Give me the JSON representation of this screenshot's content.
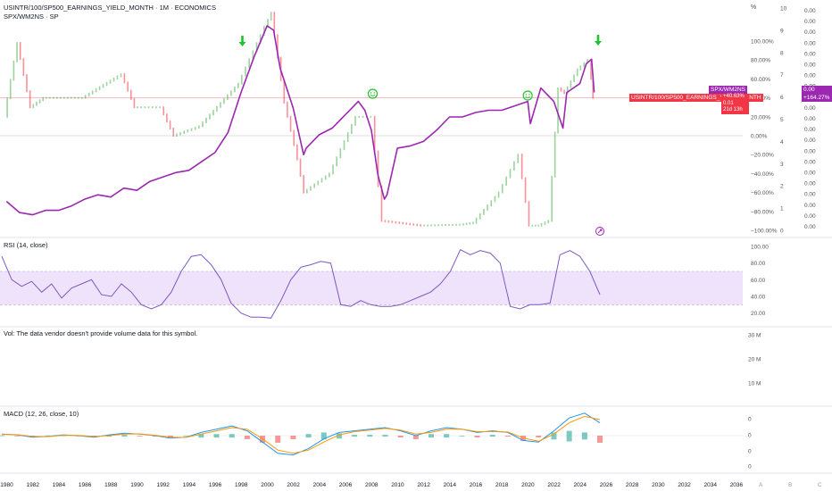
{
  "header": {
    "title": "USINTR/100/SP500_EARNINGS_YIELD_MONTH · 1M · ECONOMICS",
    "subtitle": "SPX/WM2NS · SP"
  },
  "panes": {
    "rsi": "RSI (14, close)",
    "vol": "Vol: The data vendor doesn't provide volume data for this symbol.",
    "macd": "MACD (12, 26, close, 10)"
  },
  "price_tags": {
    "spx_name": "SPX/WM2NS",
    "spx_value": "0.00",
    "spx_change": "+164.27%",
    "usintr_name": "USINTR/100/SP500_EARNINGS_YIELD_MONTH",
    "usintr_value": "0.01",
    "usintr_change": "+40.63%",
    "usintr_countdown": "21d 13h"
  },
  "axes": {
    "pct_label": "%",
    "pct_ticks": [
      "100.00%",
      "80.00%",
      "60.00%",
      "40.00%",
      "20.00%",
      "0.00%",
      "−20.00%",
      "−40.00%",
      "−60.00%",
      "−80.00%",
      "−100.00%"
    ],
    "mid_ticks": [
      "10",
      "9",
      "8",
      "7",
      "6",
      "5",
      "4",
      "3",
      "2",
      "1",
      "0"
    ],
    "right_ticks": [
      "0.00",
      "0.00",
      "0.00",
      "0.00",
      "0.00",
      "0.00",
      "0.00",
      "0.00",
      "0.00",
      "0.00",
      "0.00",
      "0.00",
      "0.00",
      "0.00",
      "0.00",
      "0.00",
      "0.00",
      "0.00",
      "0.00",
      "0.00",
      "0.00"
    ],
    "rsi_ticks": [
      "100.00",
      "80.00",
      "60.00",
      "40.00",
      "20.00"
    ],
    "vol_ticks": [
      "30 M",
      "20 M",
      "10 M"
    ],
    "macd_ticks": [
      "0",
      "0",
      "0",
      "0",
      "0"
    ],
    "x_ticks": [
      "1980",
      "1982",
      "1984",
      "1986",
      "1988",
      "1990",
      "1992",
      "1994",
      "1996",
      "1998",
      "2000",
      "2002",
      "2004",
      "2006",
      "2008",
      "2010",
      "2012",
      "2014",
      "2016",
      "2018",
      "2020",
      "2022",
      "2024",
      "2026",
      "2028",
      "2030",
      "2032",
      "2034",
      "2036"
    ],
    "scale_letters": [
      "A",
      "B",
      "C"
    ]
  },
  "colors": {
    "spx_line": "#9c27b0",
    "up": "#4caf50",
    "down": "#f23645",
    "rsi_band": "#efe3fb",
    "rsi_line": "#7e57c2",
    "macd_line": "#2196f3",
    "signal_line": "#ff9800",
    "arrow": "#22c22e",
    "smiley": "#22c22e",
    "ref_line": "#f5a6ae"
  },
  "annotations": {
    "arrows": [
      "arrow-down-1998",
      "arrow-down-2025"
    ],
    "smileys": [
      "smiley-2008",
      "smiley-2020"
    ]
  },
  "chart_data": {
    "type": "line",
    "x_range": [
      1979.5,
      2036.5
    ],
    "series": [
      {
        "name": "SPX/WM2NS",
        "axis": "right (0–10)",
        "x": [
          1980,
          1981,
          1982,
          1983,
          1984,
          1985,
          1986,
          1987,
          1988,
          1989,
          1990,
          1991,
          1992,
          1993,
          1994,
          1995,
          1996,
          1997,
          1998,
          1999,
          2000,
          2000.5,
          2001,
          2002,
          2002.8,
          2003,
          2004,
          2005,
          2006,
          2007,
          2007.5,
          2008,
          2008.5,
          2009,
          2009.2,
          2010,
          2011,
          2012,
          2013,
          2014,
          2015,
          2016,
          2017,
          2018,
          2019,
          2020,
          2020.2,
          2021,
          2022,
          2022.7,
          2023,
          2024,
          2024.5,
          2024.9,
          2025.1
        ],
        "values": [
          1.3,
          0.8,
          0.7,
          0.9,
          0.9,
          1.1,
          1.4,
          1.6,
          1.5,
          1.9,
          1.8,
          2.2,
          2.4,
          2.6,
          2.7,
          3.1,
          3.5,
          4.4,
          6.2,
          7.8,
          9.2,
          9.0,
          7.3,
          5.5,
          3.4,
          3.7,
          4.3,
          4.6,
          5.2,
          5.8,
          5.4,
          4.5,
          2.5,
          1.4,
          1.6,
          3.7,
          3.8,
          4.0,
          4.5,
          5.1,
          5.1,
          5.3,
          5.4,
          5.4,
          5.6,
          5.8,
          4.8,
          6.4,
          5.8,
          4.6,
          6.2,
          6.6,
          7.5,
          7.7,
          6.2
        ]
      },
      {
        "name": "USINTR/100/SP500_EARNINGS_YIELD_MONTH",
        "axis": "% change",
        "x": [
          1980,
          1981,
          1982,
          1983,
          1986,
          1989,
          1990,
          1992,
          1993,
          1995,
          1998,
          2000,
          2000.5,
          2001.5,
          2002.5,
          2003,
          2005,
          2007,
          2008.2,
          2009,
          2012,
          2015,
          2016,
          2018,
          2019.5,
          2020.3,
          2021,
          2021.8,
          2022.5,
          2023,
          2024,
          2024.8,
          2025.1
        ],
        "values": [
          20,
          98,
          30,
          40,
          40,
          65,
          30,
          30,
          0,
          10,
          55,
          115,
          130,
          35,
          -25,
          -60,
          -40,
          20,
          20,
          -90,
          -95,
          -94,
          -92,
          -60,
          -20,
          -95,
          -95,
          -90,
          50,
          45,
          70,
          80,
          40
        ]
      }
    ],
    "rsi": {
      "name": "RSI (14, close)",
      "band": [
        30,
        70
      ],
      "values": [
        88,
        60,
        52,
        58,
        45,
        55,
        38,
        50,
        55,
        60,
        42,
        40,
        55,
        45,
        30,
        25,
        30,
        45,
        70,
        88,
        90,
        78,
        60,
        32,
        20,
        15,
        15,
        14,
        35,
        60,
        75,
        78,
        82,
        80,
        30,
        28,
        35,
        30,
        28,
        28,
        30,
        35,
        40,
        45,
        55,
        70,
        96,
        90,
        95,
        92,
        80,
        28,
        25,
        30,
        30,
        32,
        90,
        95,
        88,
        70,
        42
      ]
    },
    "macd": {
      "name": "MACD (12, 26, close, 10)",
      "macd_values": [
        0.2,
        0.1,
        -0.2,
        -0.1,
        0.1,
        0.0,
        -0.2,
        0.1,
        0.3,
        0.2,
        0.0,
        -0.3,
        -0.2,
        0.4,
        0.8,
        1.2,
        0.6,
        -0.8,
        -2.2,
        -2.4,
        -1.6,
        -0.4,
        0.4,
        0.6,
        0.8,
        1.0,
        0.6,
        0.0,
        0.6,
        1.0,
        0.8,
        0.4,
        0.6,
        0.4,
        -0.6,
        -0.8,
        0.6,
        2.2,
        2.8,
        1.6
      ],
      "signal_values": [
        0.15,
        0.12,
        -0.1,
        -0.12,
        0.05,
        0.02,
        -0.1,
        0.0,
        0.2,
        0.22,
        0.05,
        -0.2,
        -0.22,
        0.2,
        0.6,
        1.0,
        0.8,
        -0.4,
        -1.8,
        -2.2,
        -1.8,
        -0.8,
        0.1,
        0.5,
        0.7,
        0.9,
        0.7,
        0.2,
        0.4,
        0.8,
        0.8,
        0.5,
        0.5,
        0.45,
        -0.3,
        -0.7,
        0.2,
        1.6,
        2.4,
        2.0
      ]
    }
  }
}
